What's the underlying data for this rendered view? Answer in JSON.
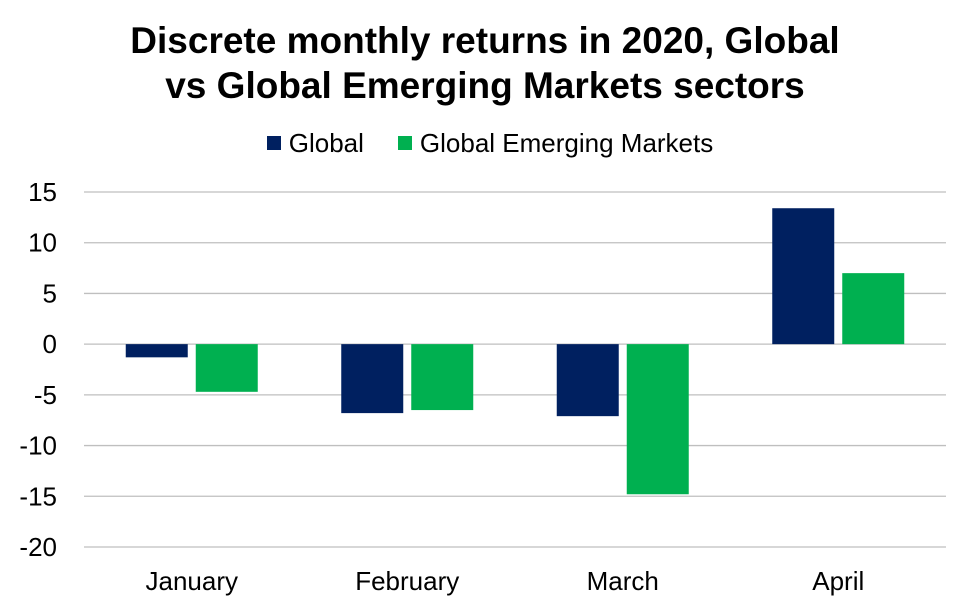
{
  "chart_data": {
    "type": "bar",
    "title_lines": [
      "Discrete monthly returns in 2020, Global",
      "vs Global Emerging Markets sectors"
    ],
    "categories": [
      "January",
      "February",
      "March",
      "April"
    ],
    "series": [
      {
        "name": "Global",
        "color": "#002060",
        "values": [
          -1.3,
          -6.8,
          -7.1,
          13.4
        ]
      },
      {
        "name": "Global Emerging Markets",
        "color": "#00B050",
        "values": [
          -4.7,
          -6.5,
          -14.8,
          7.0
        ]
      }
    ],
    "yticks": [
      "15",
      "10",
      "5",
      "0",
      "-5",
      "-10",
      "-15",
      "-20"
    ],
    "ylim": [
      -20,
      15
    ],
    "grid": true,
    "legend_position": "top"
  }
}
